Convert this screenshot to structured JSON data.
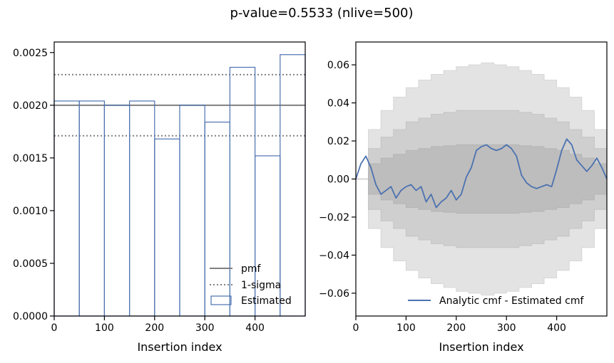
{
  "figure": {
    "title": "p-value=0.5533 (nlive=500)"
  },
  "colors": {
    "pmf": "#808080",
    "sigma": "#808080",
    "estimated": "#4c72b0",
    "band1": "#bdbdbd",
    "band2": "#cfcfcf",
    "band3": "#e3e3e3"
  },
  "chart_data": [
    {
      "type": "bar",
      "title": "",
      "xlabel": "Insertion index",
      "ylabel": "",
      "xlim": [
        0,
        500
      ],
      "ylim": [
        0,
        0.0026
      ],
      "xticks": [
        0,
        100,
        200,
        300,
        400
      ],
      "yticks": [
        0.0,
        0.0005,
        0.001,
        0.0015,
        0.002,
        0.0025
      ],
      "ytick_labels": [
        "0.0000",
        "0.0005",
        "0.0010",
        "0.0015",
        "0.0020",
        "0.0025"
      ],
      "bin_edges": [
        0,
        50,
        100,
        150,
        200,
        250,
        300,
        350,
        400,
        450,
        500
      ],
      "values": [
        0.00204,
        0.00204,
        0.002,
        0.00204,
        0.00168,
        0.002,
        0.00184,
        0.00236,
        0.00152,
        0.00248
      ],
      "pmf": 0.002,
      "sigma_band": [
        0.00171,
        0.00229
      ],
      "legend": {
        "placement": "lower-right",
        "entries": [
          "pmf",
          "1-sigma",
          "Estimated"
        ]
      }
    },
    {
      "type": "line",
      "title": "",
      "xlabel": "Insertion index",
      "ylabel": "",
      "xlim": [
        0,
        500
      ],
      "ylim": [
        -0.072,
        0.072
      ],
      "xticks": [
        0,
        100,
        200,
        300,
        400
      ],
      "yticks": [
        0.06,
        0.04,
        0.02,
        0.0,
        -0.02,
        -0.04,
        -0.06
      ],
      "ytick_labels": [
        "0.06",
        "0.04",
        "0.02",
        "0.00",
        "−0.02",
        "−0.04",
        "−0.06"
      ],
      "x": [
        0,
        10,
        20,
        30,
        40,
        50,
        60,
        70,
        80,
        90,
        100,
        110,
        120,
        130,
        140,
        150,
        160,
        170,
        180,
        190,
        200,
        210,
        220,
        230,
        240,
        250,
        260,
        270,
        280,
        290,
        300,
        310,
        320,
        330,
        340,
        350,
        360,
        370,
        380,
        390,
        400,
        410,
        420,
        430,
        440,
        450,
        460,
        470,
        480,
        490,
        500
      ],
      "y": [
        0.0,
        0.008,
        0.012,
        0.006,
        -0.003,
        -0.008,
        -0.006,
        -0.004,
        -0.01,
        -0.006,
        -0.004,
        -0.003,
        -0.006,
        -0.004,
        -0.012,
        -0.008,
        -0.015,
        -0.012,
        -0.01,
        -0.006,
        -0.011,
        -0.008,
        0.001,
        0.006,
        0.015,
        0.017,
        0.018,
        0.016,
        0.015,
        0.016,
        0.018,
        0.016,
        0.012,
        0.002,
        -0.002,
        -0.004,
        -0.005,
        -0.004,
        -0.003,
        -0.004,
        0.005,
        0.015,
        0.021,
        0.018,
        0.01,
        0.007,
        0.004,
        0.007,
        0.011,
        0.006,
        0.0
      ],
      "bands": {
        "x": [
          0,
          25,
          50,
          75,
          100,
          125,
          150,
          175,
          200,
          225,
          250,
          275,
          300,
          325,
          350,
          375,
          400,
          425,
          450,
          475,
          500
        ],
        "sigma1": [
          0.0,
          0.008,
          0.011,
          0.013,
          0.015,
          0.016,
          0.017,
          0.0175,
          0.018,
          0.018,
          0.018,
          0.018,
          0.018,
          0.0175,
          0.017,
          0.016,
          0.015,
          0.013,
          0.011,
          0.008,
          0.0
        ],
        "sigma2": [
          0.0,
          0.016,
          0.022,
          0.026,
          0.03,
          0.032,
          0.034,
          0.035,
          0.036,
          0.036,
          0.036,
          0.036,
          0.036,
          0.035,
          0.034,
          0.032,
          0.03,
          0.026,
          0.022,
          0.016,
          0.0
        ],
        "sigma3": [
          0.0,
          0.026,
          0.036,
          0.043,
          0.048,
          0.052,
          0.055,
          0.057,
          0.059,
          0.06,
          0.061,
          0.06,
          0.059,
          0.057,
          0.055,
          0.052,
          0.048,
          0.043,
          0.036,
          0.026,
          0.0
        ]
      },
      "legend": {
        "placement": "lower-right",
        "entries": [
          "Analytic cmf - Estimated cmf"
        ]
      }
    }
  ]
}
